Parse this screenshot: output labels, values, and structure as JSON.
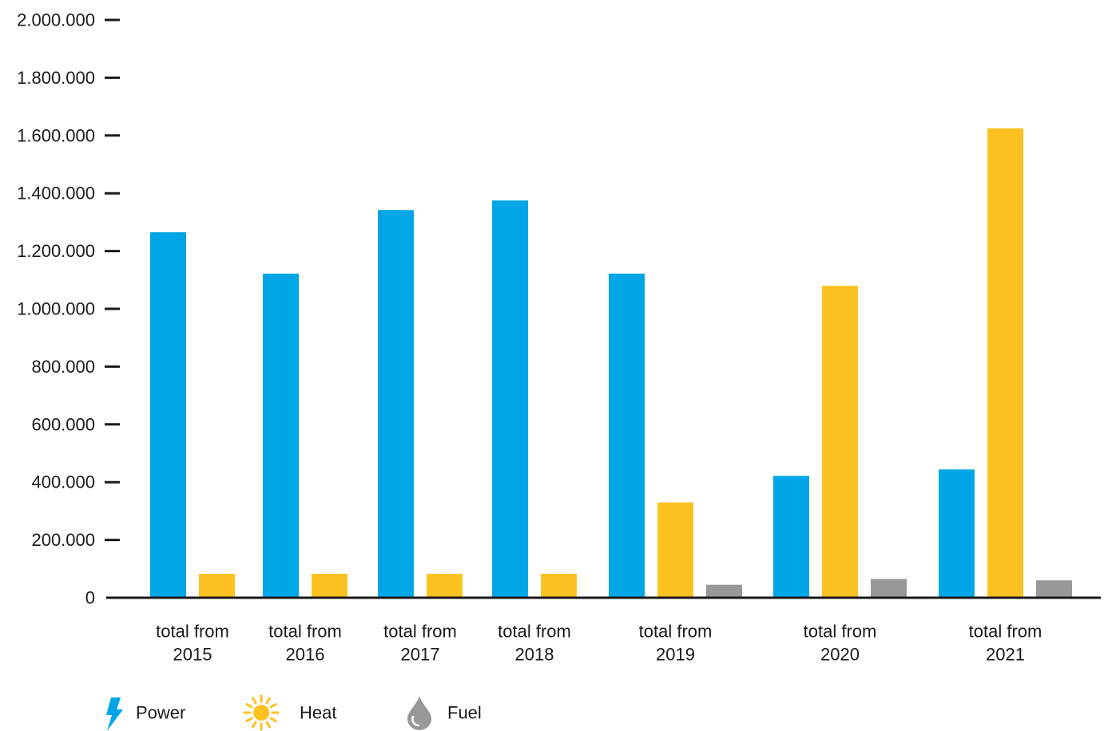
{
  "chart_data": {
    "type": "bar",
    "categories": [
      [
        "total from",
        "2015"
      ],
      [
        "total from",
        "2016"
      ],
      [
        "total from",
        "2017"
      ],
      [
        "total from",
        "2018"
      ],
      [
        "total from",
        "2019"
      ],
      [
        "total from",
        "2020"
      ],
      [
        "total from",
        "2021"
      ]
    ],
    "series": [
      {
        "name": "Power",
        "color": "#00a6e6",
        "icon": "lightning-bolt-icon",
        "values": [
          1265000,
          1122000,
          1342000,
          1375000,
          1122000,
          422000,
          444000
        ]
      },
      {
        "name": "Heat",
        "color": "#fdc221",
        "icon": "sun-icon",
        "values": [
          83000,
          83000,
          83000,
          83000,
          330000,
          1080000,
          1625000
        ]
      },
      {
        "name": "Fuel",
        "color": "#98989a",
        "icon": "droplet-icon",
        "values": [
          null,
          null,
          null,
          null,
          45000,
          65000,
          60000
        ]
      }
    ],
    "y_ticks": [
      "0",
      "200.000",
      "400.000",
      "600.000",
      "800.000",
      "1.000.000",
      "1.200.000",
      "1.400.000",
      "1.600.000",
      "1.800.000",
      "2.000.000"
    ],
    "ylim": [
      0,
      2000000
    ],
    "title": "",
    "xlabel": "",
    "ylabel": "",
    "grid": false,
    "legend": "bottom-left"
  }
}
